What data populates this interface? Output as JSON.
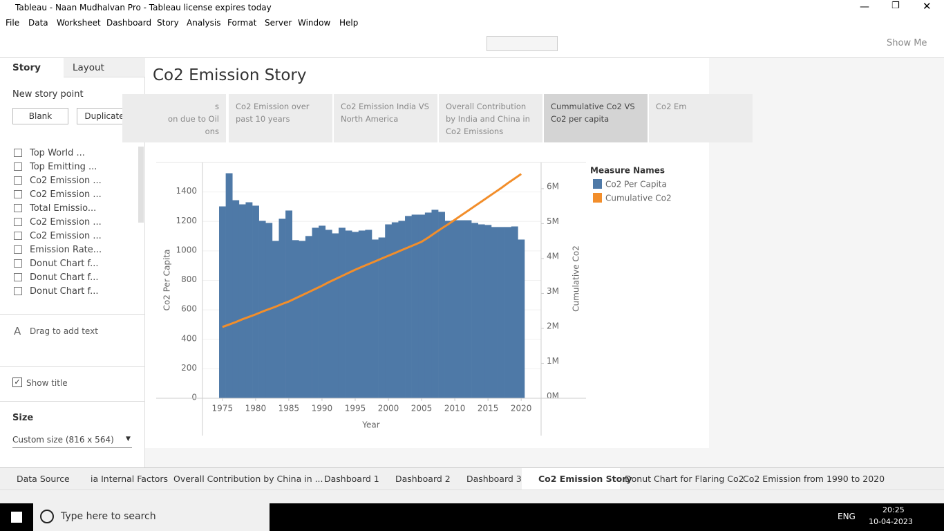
{
  "window": {
    "title": "Tableau - Naan Mudhalvan Pro - Tableau license expires today"
  },
  "menu": [
    "File",
    "Data",
    "Worksheet",
    "Dashboard",
    "Story",
    "Analysis",
    "Format",
    "Server",
    "Window",
    "Help"
  ],
  "toolbar": {
    "show_me": "Show Me"
  },
  "sidebar": {
    "tabs": [
      "Story",
      "Layout"
    ],
    "new_story_point": "New story point",
    "buttons": [
      "Blank",
      "Duplicate"
    ],
    "sheets": [
      "Top World ...",
      "Top Emitting ...",
      "Co2 Emission ...",
      "Co2 Emission ...",
      "Total Emissio...",
      "Co2 Emission ...",
      "Co2 Emission ...",
      "Emission Rate...",
      "Donut Chart f...",
      "Donut Chart f...",
      "Donut Chart f..."
    ],
    "drag_text": "Drag to add text",
    "show_title": "Show title",
    "size_label": "Size",
    "size_value": "Custom size (816 x 564)"
  },
  "story": {
    "title": "Co2 Emission Story",
    "points": [
      "s\non due to Oil\nons",
      "Co2 Emission over\npast 10 years",
      "Co2 Emission India VS\nNorth America",
      "Overall Contribution\nby India and China in\nCo2 Emissions",
      "Cummulative Co2 VS\nCo2 per capita",
      "Co2 Em"
    ]
  },
  "chart_data": {
    "type": "bar",
    "x_label": "Year",
    "y_label": "Co2 Per Capita",
    "y2_label": "Cumulative Co2",
    "legend_title": "Measure Names",
    "x": [
      1975,
      1976,
      1977,
      1978,
      1979,
      1980,
      1981,
      1982,
      1983,
      1984,
      1985,
      1986,
      1987,
      1988,
      1989,
      1990,
      1991,
      1992,
      1993,
      1994,
      1995,
      1996,
      1997,
      1998,
      1999,
      2000,
      2001,
      2002,
      2003,
      2004,
      2005,
      2006,
      2007,
      2008,
      2009,
      2010,
      2011,
      2012,
      2013,
      2014,
      2015,
      2016,
      2017,
      2018,
      2019,
      2020
    ],
    "series": [
      {
        "name": "Co2 Per Capita",
        "type": "bar",
        "color": "#4e79a7",
        "values": [
          1302,
          1527,
          1344,
          1316,
          1330,
          1307,
          1204,
          1190,
          1068,
          1218,
          1274,
          1073,
          1068,
          1101,
          1157,
          1171,
          1143,
          1119,
          1157,
          1138,
          1129,
          1138,
          1143,
          1077,
          1091,
          1180,
          1194,
          1204,
          1237,
          1246,
          1246,
          1260,
          1279,
          1265,
          1204,
          1208,
          1208,
          1208,
          1190,
          1180,
          1176,
          1162,
          1162,
          1162,
          1166,
          1077
        ]
      },
      {
        "name": "Cumulative Co2",
        "type": "line",
        "color": "#f28e2b",
        "axis": "y2",
        "values": [
          2040000,
          2110000,
          2180000,
          2260000,
          2330000,
          2400000,
          2480000,
          2550000,
          2620000,
          2700000,
          2770000,
          2860000,
          2950000,
          3040000,
          3130000,
          3220000,
          3320000,
          3410000,
          3500000,
          3590000,
          3680000,
          3760000,
          3840000,
          3920000,
          4000000,
          4080000,
          4160000,
          4240000,
          4320000,
          4400000,
          4480000,
          4600000,
          4730000,
          4860000,
          4980000,
          5110000,
          5240000,
          5370000,
          5500000,
          5630000,
          5760000,
          5890000,
          6020000,
          6160000,
          6290000,
          6420000
        ]
      }
    ],
    "xlim": [
      1972,
      2023
    ],
    "xticks": [
      1975,
      1980,
      1985,
      1990,
      1995,
      2000,
      2005,
      2010,
      2015,
      2020
    ],
    "ylim": [
      0,
      1600
    ],
    "yticks": [
      0,
      200,
      400,
      600,
      800,
      1000,
      1200,
      1400
    ],
    "y2lim": [
      0,
      6750000
    ],
    "y2ticks": [
      {
        "value": 0,
        "label": "0M"
      },
      {
        "value": 1000000,
        "label": "1M"
      },
      {
        "value": 2000000,
        "label": "2M"
      },
      {
        "value": 3000000,
        "label": "3M"
      },
      {
        "value": 4000000,
        "label": "4M"
      },
      {
        "value": 5000000,
        "label": "5M"
      },
      {
        "value": 6000000,
        "label": "6M"
      }
    ],
    "grid": true
  },
  "sheet_tabs": [
    "Data Source",
    "ia Internal Factors",
    "Overall Contribution by China in ...",
    "Dashboard 1",
    "Dashboard 2",
    "Dashboard 3",
    "Co2 Emission Story",
    "Donut Chart for Flaring Co2",
    "Co2 Emission from 1990 to 2020"
  ],
  "taskbar": {
    "search": "Type here to search",
    "language": "ENG",
    "time": "20:25",
    "date": "10-04-2023"
  }
}
